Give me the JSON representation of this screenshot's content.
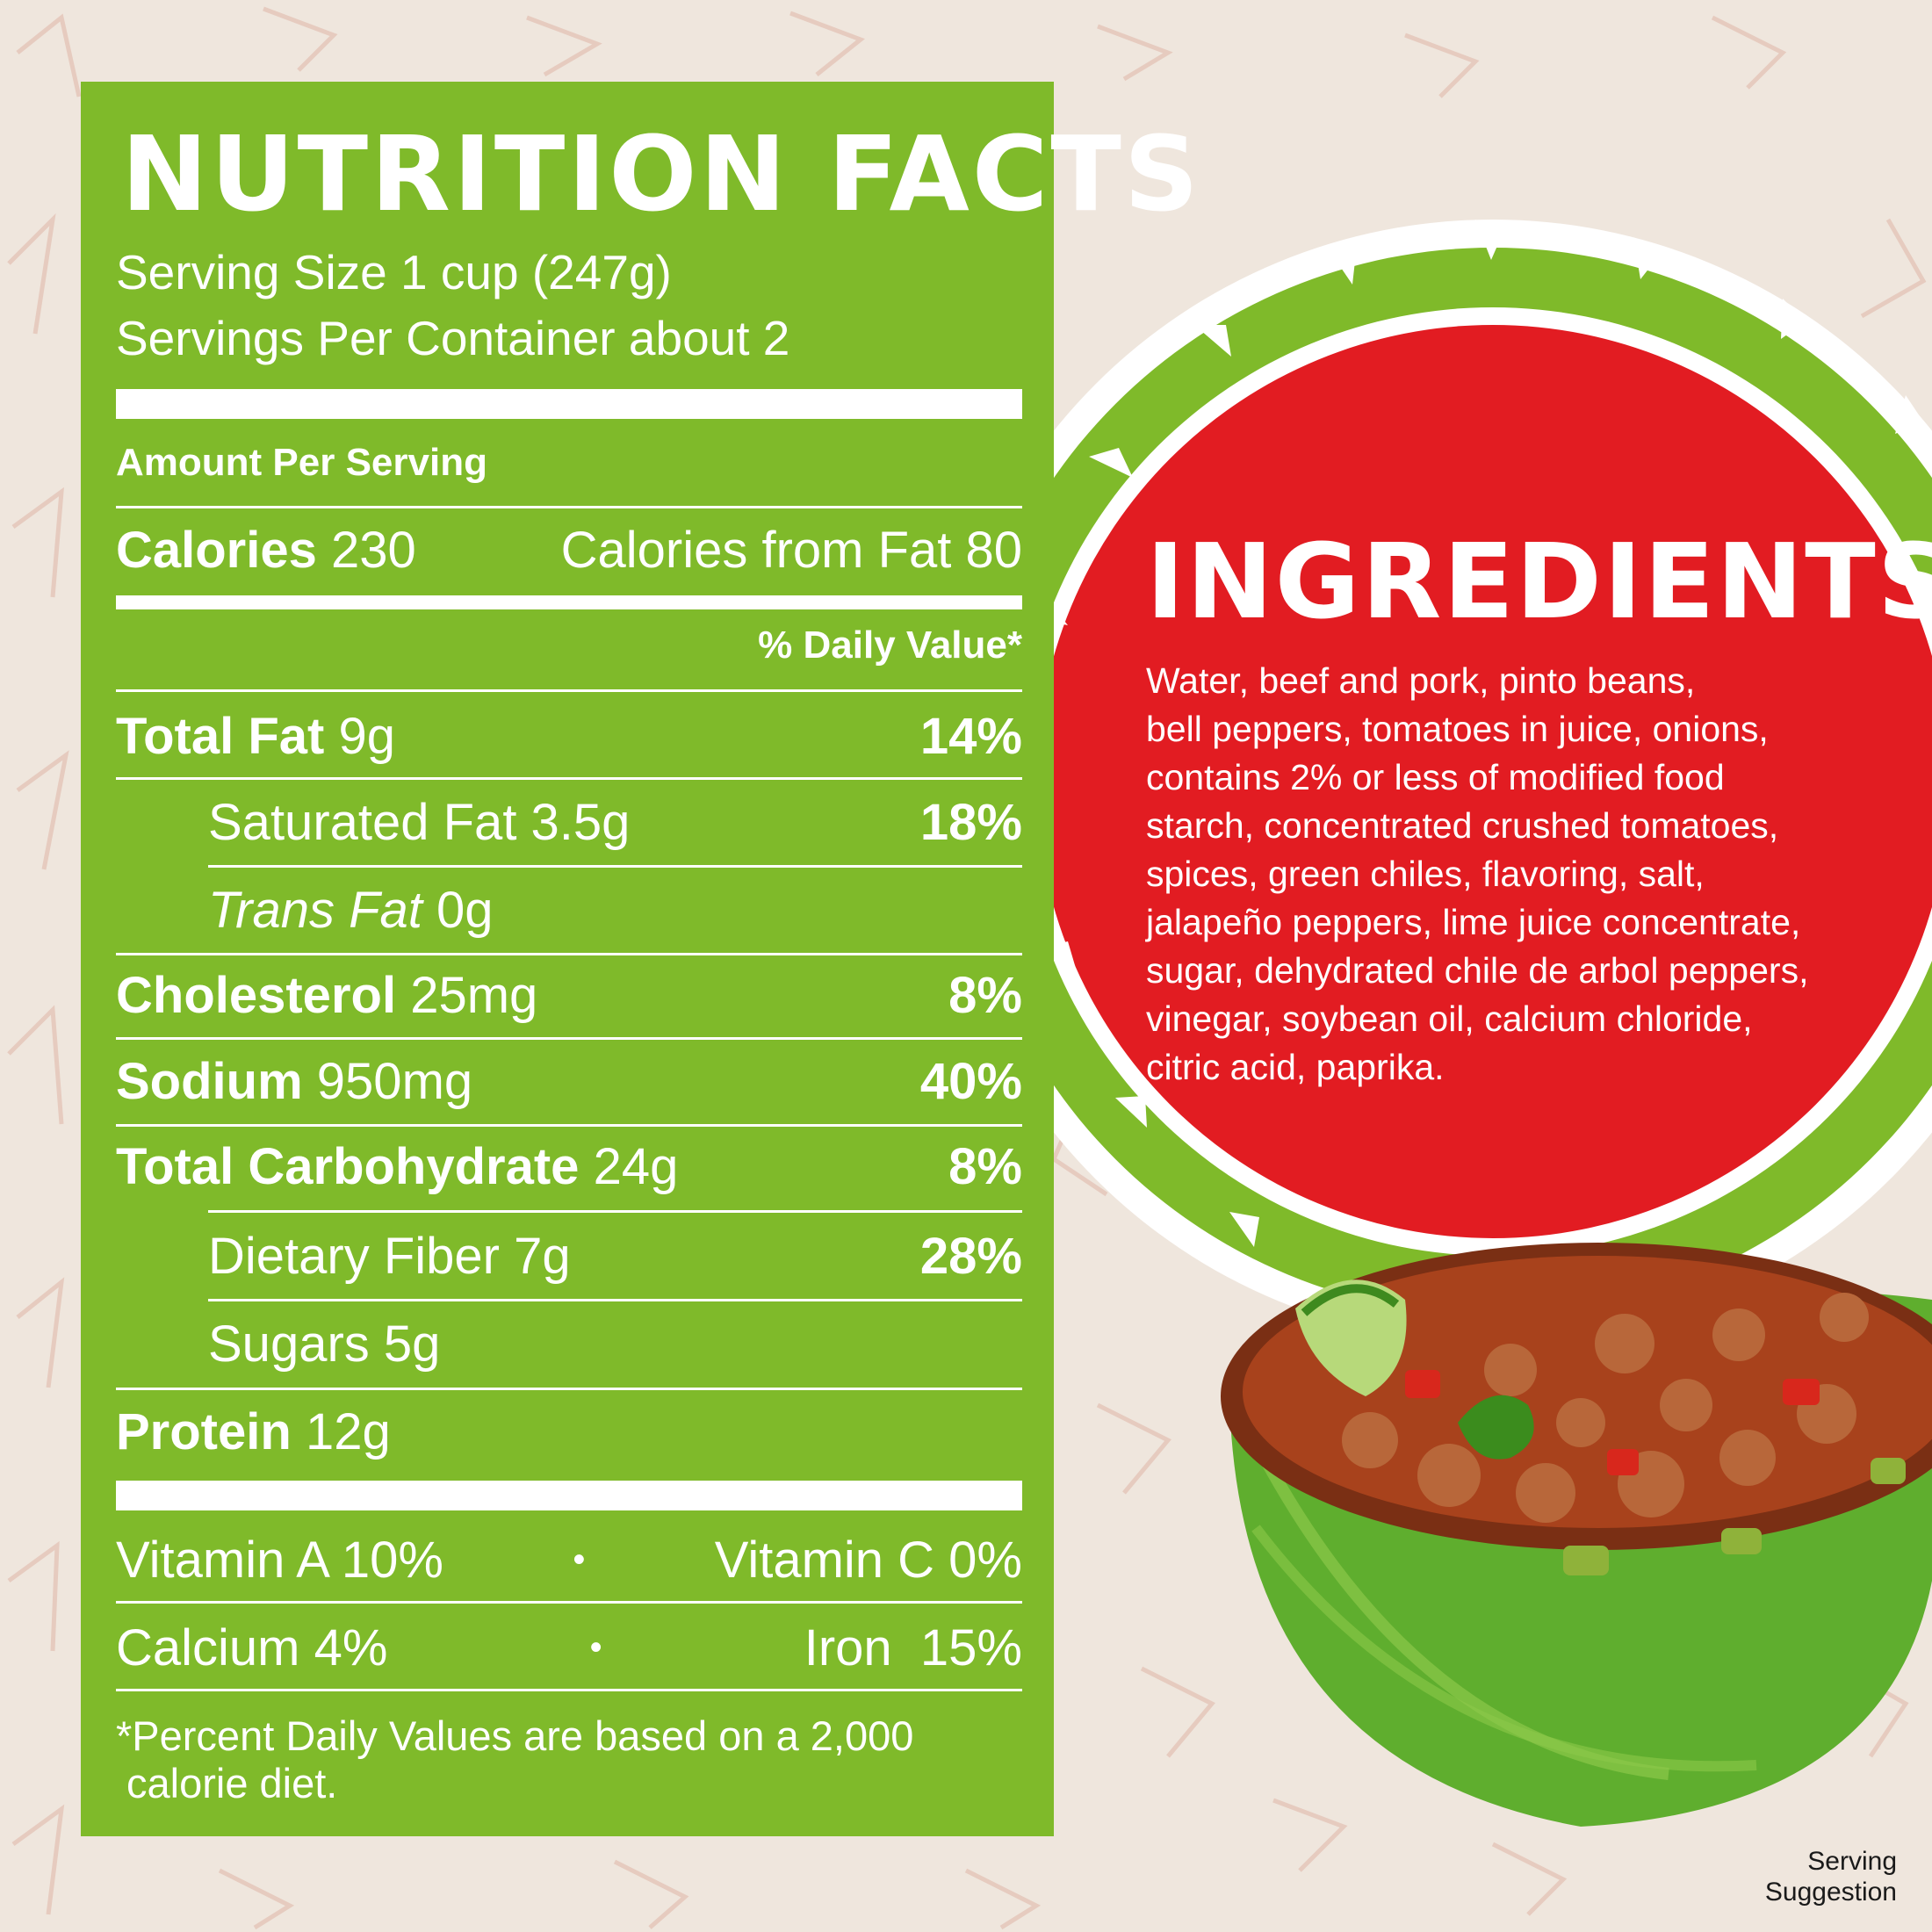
{
  "colors": {
    "panel_green": "#7fba2a",
    "circle_red": "#e21c22",
    "text_white": "#ffffff",
    "background": "#efe6dd"
  },
  "nutrition": {
    "title": "NUTRITION FACTS",
    "serving_size": "Serving Size 1 cup (247g)",
    "servings_per_container": "Servings Per Container about 2",
    "amount_per_serving": "Amount Per Serving",
    "calories_label": "Calories",
    "calories_value": "230",
    "calories_from_fat": "Calories from Fat 80",
    "daily_value_header": "% Daily Value*",
    "total_fat": {
      "label": "Total Fat",
      "amount": "9g",
      "dv": "14%"
    },
    "saturated_fat": {
      "label": "Saturated Fat 3.5g",
      "dv": "18%"
    },
    "trans_fat": {
      "label": "Trans Fat",
      "amount": "0g"
    },
    "cholesterol": {
      "label": "Cholesterol",
      "amount": "25mg",
      "dv": "8%"
    },
    "sodium": {
      "label": "Sodium",
      "amount": "950mg",
      "dv": "40%"
    },
    "total_carbohydrate": {
      "label": "Total Carbohydrate",
      "amount": "24g",
      "dv": "8%"
    },
    "dietary_fiber": {
      "label": "Dietary Fiber 7g",
      "dv": "28%"
    },
    "sugars": {
      "label": "Sugars 5g"
    },
    "protein": {
      "label": "Protein",
      "amount": "12g"
    },
    "vitamins": {
      "vitamin_a": "Vitamin A 10%",
      "vitamin_c": "Vitamin C 0%",
      "calcium": "Calcium 4%",
      "iron": "Iron  15%",
      "separator": "•"
    },
    "footnote_line1": "*Percent Daily Values are based on a 2,000",
    "footnote_line2": "calorie diet."
  },
  "ingredients": {
    "title": "INGREDIENTS",
    "lines": [
      "Water, beef and pork, pinto beans,",
      "bell peppers, tomatoes in juice, onions,",
      "contains 2% or less of modified food",
      "starch, concentrated crushed tomatoes,",
      "spices, green chiles, flavoring, salt,",
      "jalapeño peppers, lime juice concentrate,",
      "sugar, dehydrated chile de arbol peppers,",
      "vinegar, soybean oil, calcium chloride,",
      "citric acid, paprika."
    ]
  },
  "serving_note": {
    "line1": "Serving",
    "line2": "Suggestion"
  }
}
